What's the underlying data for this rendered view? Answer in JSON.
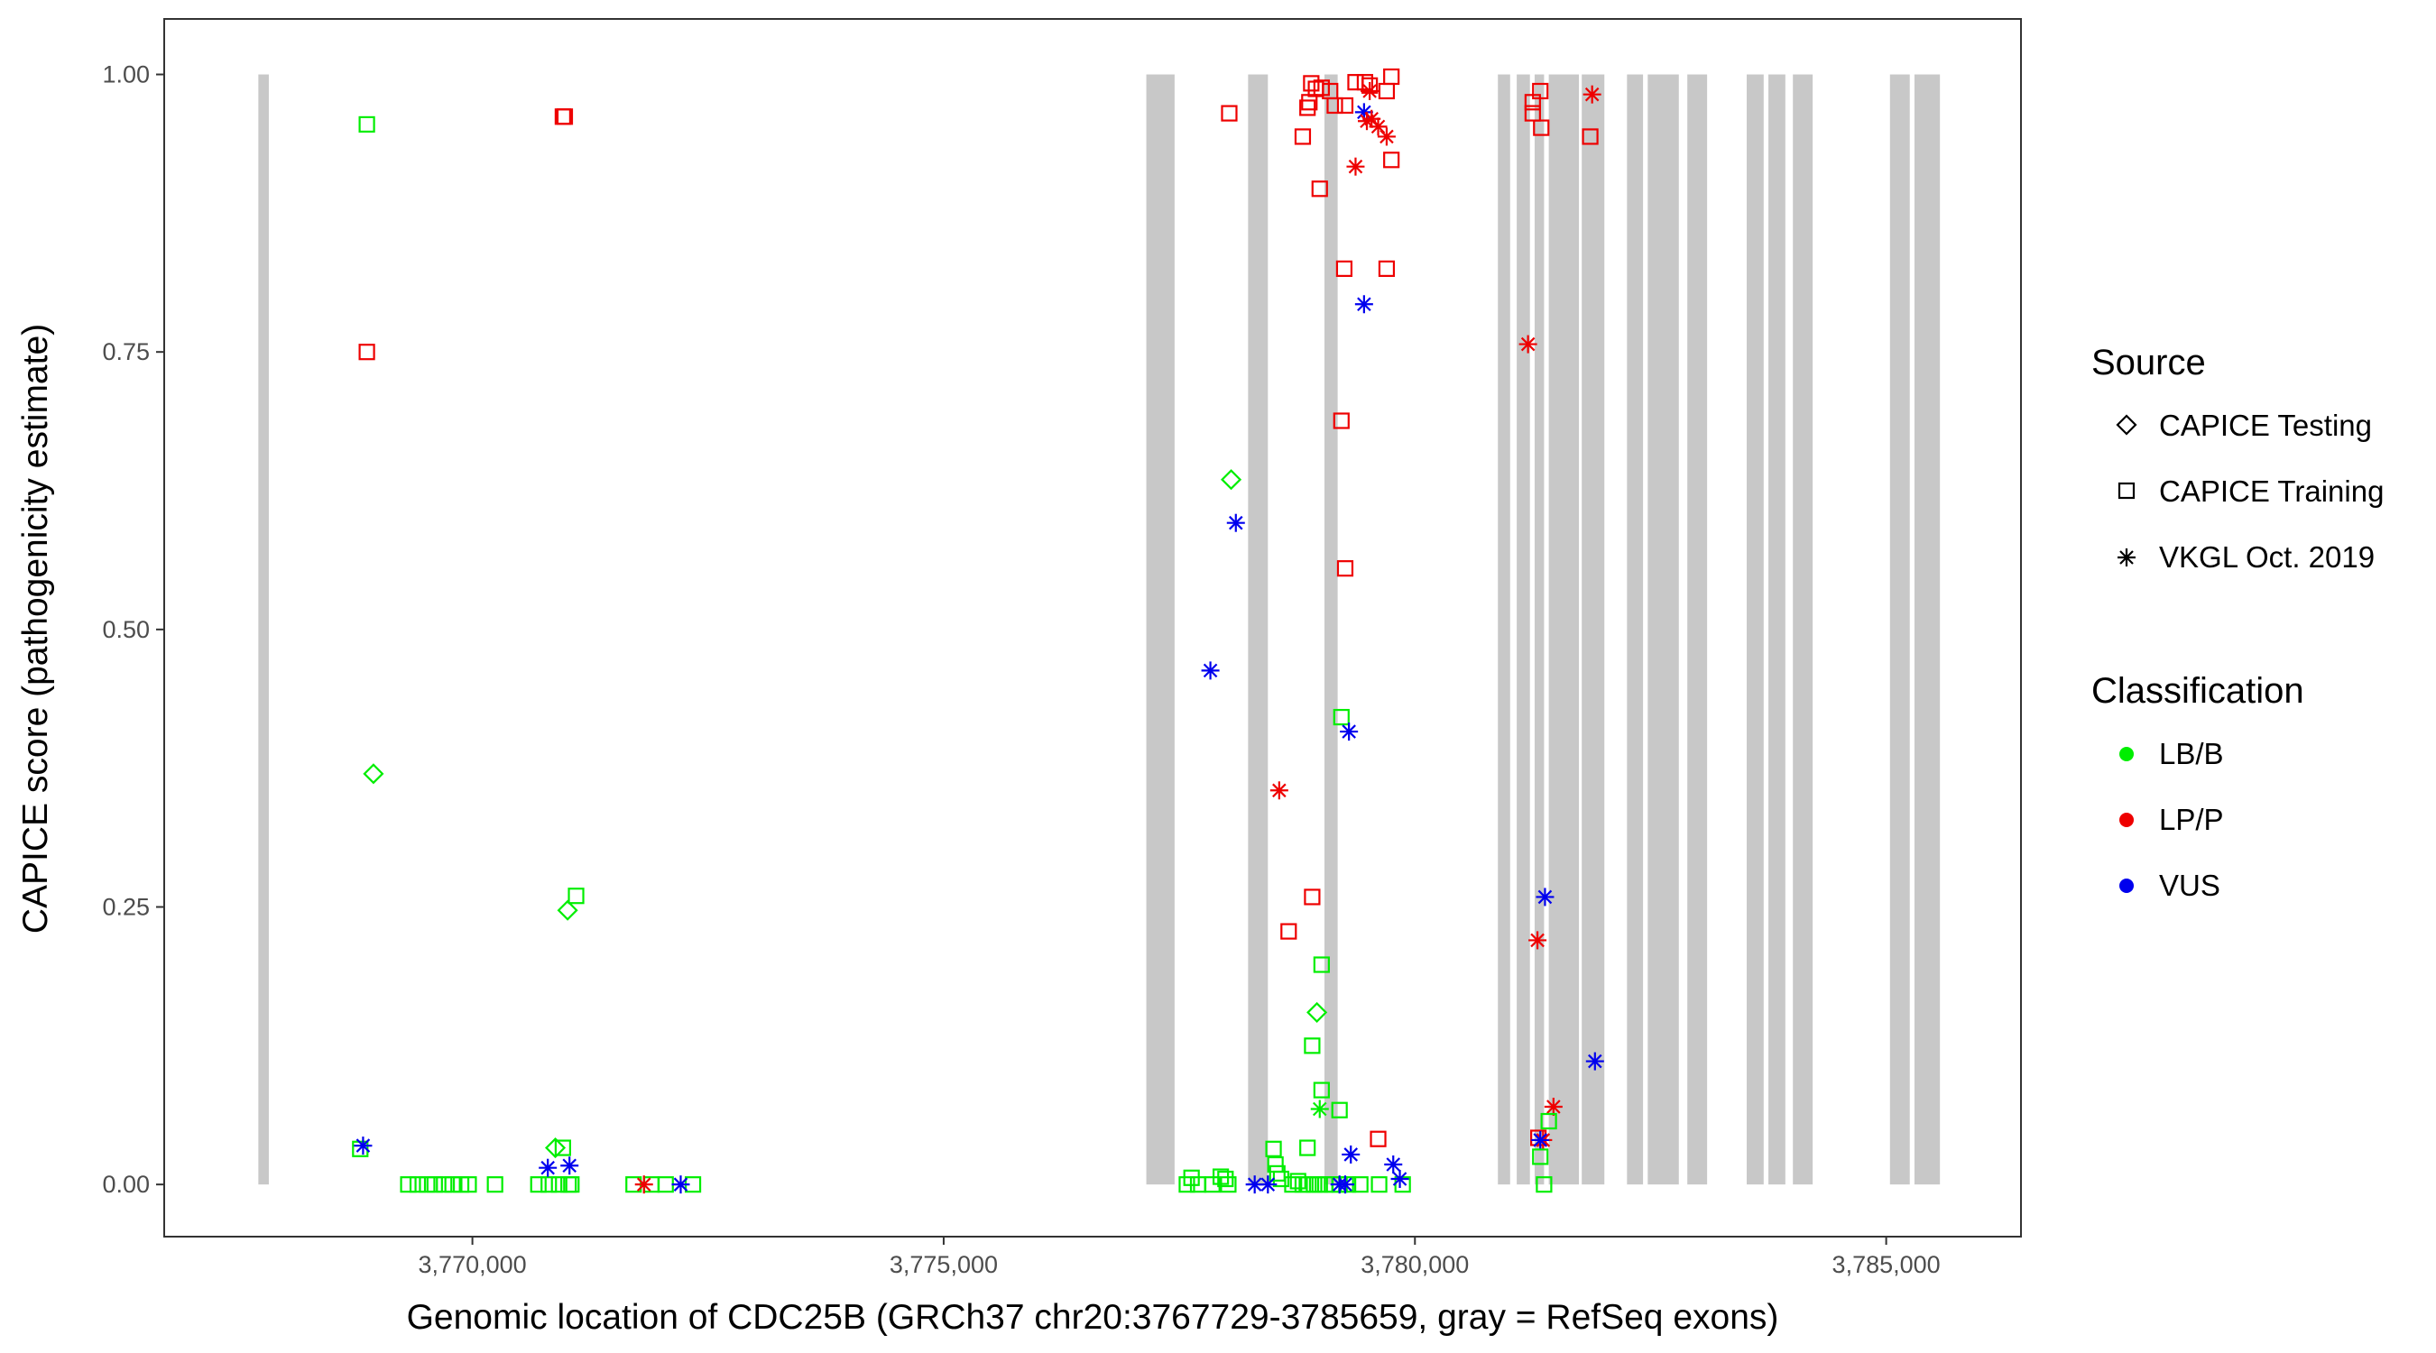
{
  "chart_data": {
    "type": "scatter",
    "xlabel": "Genomic location of CDC25B (GRCh37 chr20:3767729-3785659, gray = RefSeq exons)",
    "ylabel": "CAPICE score (pathogenicity estimate)",
    "xlim": [
      3766730,
      3786430
    ],
    "ylim": [
      -0.047,
      1.05
    ],
    "grid": false,
    "x_ticks": [
      3770000,
      3775000,
      3780000,
      3785000
    ],
    "x_tick_labels": [
      "3,770,000",
      "3,775,000",
      "3,780,000",
      "3,785,000"
    ],
    "y_ticks": [
      0,
      0.25,
      0.5,
      0.75,
      1.0
    ],
    "y_tick_labels": [
      "0.00",
      "0.25",
      "0.50",
      "0.75",
      "1.00"
    ],
    "exons": [
      [
        3767729,
        3767840
      ],
      [
        3777150,
        3777450
      ],
      [
        3778230,
        3778440
      ],
      [
        3779040,
        3779180
      ],
      [
        3780880,
        3781010
      ],
      [
        3781080,
        3781220
      ],
      [
        3781270,
        3781370
      ],
      [
        3781420,
        3781740
      ],
      [
        3781770,
        3782010
      ],
      [
        3782250,
        3782420
      ],
      [
        3782470,
        3782800
      ],
      [
        3782890,
        3783100
      ],
      [
        3783520,
        3783700
      ],
      [
        3783750,
        3783930
      ],
      [
        3784010,
        3784220
      ],
      [
        3785040,
        3785250
      ],
      [
        3785300,
        3785570
      ]
    ],
    "legend": {
      "source_title": "Source",
      "source_items": [
        {
          "label": "CAPICE Testing",
          "shape": "diamond"
        },
        {
          "label": "CAPICE Training",
          "shape": "square"
        },
        {
          "label": "VKGL Oct. 2019",
          "shape": "star"
        }
      ],
      "class_title": "Classification",
      "class_items": [
        {
          "label": "LB/B",
          "color": "#00ee00"
        },
        {
          "label": "LP/P",
          "color": "#ee0000"
        },
        {
          "label": "VUS",
          "color": "#0000ee"
        }
      ]
    },
    "colors": {
      "LB/B": "#00ee00",
      "LP/P": "#ee0000",
      "VUS": "#0000ee"
    },
    "points": [
      {
        "x": 3768880,
        "y": 0.955,
        "source": "square",
        "cls": "LB/B"
      },
      {
        "x": 3768880,
        "y": 0.75,
        "source": "square",
        "cls": "LP/P"
      },
      {
        "x": 3768950,
        "y": 0.37,
        "source": "diamond",
        "cls": "LB/B"
      },
      {
        "x": 3768810,
        "y": 0.032,
        "source": "square",
        "cls": "LB/B"
      },
      {
        "x": 3768840,
        "y": 0.035,
        "source": "star",
        "cls": "VUS"
      },
      {
        "x": 3769320,
        "y": 0.0,
        "source": "square",
        "cls": "LB/B"
      },
      {
        "x": 3769420,
        "y": 0.0,
        "source": "square",
        "cls": "LB/B"
      },
      {
        "x": 3769520,
        "y": 0.0,
        "source": "square",
        "cls": "LB/B"
      },
      {
        "x": 3769600,
        "y": 0.0,
        "source": "square",
        "cls": "LB/B"
      },
      {
        "x": 3769700,
        "y": 0.0,
        "source": "square",
        "cls": "LB/B"
      },
      {
        "x": 3769790,
        "y": 0.0,
        "source": "square",
        "cls": "LB/B"
      },
      {
        "x": 3769880,
        "y": 0.0,
        "source": "square",
        "cls": "LB/B"
      },
      {
        "x": 3769960,
        "y": 0.0,
        "source": "square",
        "cls": "LB/B"
      },
      {
        "x": 3770240,
        "y": 0.0,
        "source": "square",
        "cls": "LB/B"
      },
      {
        "x": 3770700,
        "y": 0.0,
        "source": "square",
        "cls": "LB/B"
      },
      {
        "x": 3770810,
        "y": 0.0,
        "source": "square",
        "cls": "LB/B"
      },
      {
        "x": 3770920,
        "y": 0.0,
        "source": "square",
        "cls": "LB/B"
      },
      {
        "x": 3771050,
        "y": 0.0,
        "source": "square",
        "cls": "LB/B"
      },
      {
        "x": 3771020,
        "y": 0.0,
        "source": "square",
        "cls": "LB/B"
      },
      {
        "x": 3770960,
        "y": 0.962,
        "source": "square",
        "cls": "LP/P"
      },
      {
        "x": 3770980,
        "y": 0.962,
        "source": "square",
        "cls": "LP/P"
      },
      {
        "x": 3771100,
        "y": 0.26,
        "source": "square",
        "cls": "LB/B"
      },
      {
        "x": 3771010,
        "y": 0.247,
        "source": "diamond",
        "cls": "LB/B"
      },
      {
        "x": 3770880,
        "y": 0.033,
        "source": "diamond",
        "cls": "LB/B"
      },
      {
        "x": 3770960,
        "y": 0.033,
        "source": "square",
        "cls": "LB/B"
      },
      {
        "x": 3770800,
        "y": 0.015,
        "source": "star",
        "cls": "VUS"
      },
      {
        "x": 3771030,
        "y": 0.017,
        "source": "star",
        "cls": "VUS"
      },
      {
        "x": 3771710,
        "y": 0.0,
        "source": "square",
        "cls": "LB/B"
      },
      {
        "x": 3771900,
        "y": 0.0,
        "source": "square",
        "cls": "LB/B"
      },
      {
        "x": 3772050,
        "y": 0.0,
        "source": "square",
        "cls": "LB/B"
      },
      {
        "x": 3772340,
        "y": 0.0,
        "source": "square",
        "cls": "LB/B"
      },
      {
        "x": 3771820,
        "y": 0.0,
        "source": "star",
        "cls": "LP/P"
      },
      {
        "x": 3772210,
        "y": 0.0,
        "source": "star",
        "cls": "VUS"
      },
      {
        "x": 3777580,
        "y": 0.0,
        "source": "square",
        "cls": "LB/B"
      },
      {
        "x": 3777700,
        "y": 0.0,
        "source": "square",
        "cls": "LB/B"
      },
      {
        "x": 3777630,
        "y": 0.006,
        "source": "square",
        "cls": "LB/B"
      },
      {
        "x": 3777850,
        "y": 0.0,
        "source": "square",
        "cls": "LB/B"
      },
      {
        "x": 3777940,
        "y": 0.007,
        "source": "square",
        "cls": "LB/B"
      },
      {
        "x": 3777990,
        "y": 0.005,
        "source": "square",
        "cls": "LB/B"
      },
      {
        "x": 3778020,
        "y": 0.0,
        "source": "square",
        "cls": "LB/B"
      },
      {
        "x": 3778500,
        "y": 0.032,
        "source": "square",
        "cls": "LB/B"
      },
      {
        "x": 3778520,
        "y": 0.018,
        "source": "square",
        "cls": "LB/B"
      },
      {
        "x": 3778540,
        "y": 0.01,
        "source": "square",
        "cls": "LB/B"
      },
      {
        "x": 3778580,
        "y": 0.005,
        "source": "square",
        "cls": "LB/B"
      },
      {
        "x": 3778700,
        "y": 0.0,
        "source": "square",
        "cls": "LB/B"
      },
      {
        "x": 3778760,
        "y": 0.003,
        "source": "square",
        "cls": "LB/B"
      },
      {
        "x": 3778810,
        "y": 0.0,
        "source": "square",
        "cls": "LB/B"
      },
      {
        "x": 3778870,
        "y": 0.0,
        "source": "square",
        "cls": "LB/B"
      },
      {
        "x": 3778930,
        "y": 0.0,
        "source": "square",
        "cls": "LB/B"
      },
      {
        "x": 3778990,
        "y": 0.0,
        "source": "square",
        "cls": "LB/B"
      },
      {
        "x": 3779050,
        "y": 0.0,
        "source": "square",
        "cls": "LB/B"
      },
      {
        "x": 3779120,
        "y": 0.0,
        "source": "square",
        "cls": "LB/B"
      },
      {
        "x": 3779200,
        "y": 0.0,
        "source": "square",
        "cls": "LB/B"
      },
      {
        "x": 3779290,
        "y": 0.0,
        "source": "square",
        "cls": "LB/B"
      },
      {
        "x": 3779420,
        "y": 0.0,
        "source": "square",
        "cls": "LB/B"
      },
      {
        "x": 3779620,
        "y": 0.0,
        "source": "square",
        "cls": "LB/B"
      },
      {
        "x": 3779870,
        "y": 0.0,
        "source": "square",
        "cls": "LB/B"
      },
      {
        "x": 3778860,
        "y": 0.033,
        "source": "square",
        "cls": "LB/B"
      },
      {
        "x": 3778910,
        "y": 0.125,
        "source": "square",
        "cls": "LB/B"
      },
      {
        "x": 3778960,
        "y": 0.155,
        "source": "diamond",
        "cls": "LB/B"
      },
      {
        "x": 3779010,
        "y": 0.198,
        "source": "square",
        "cls": "LB/B"
      },
      {
        "x": 3779010,
        "y": 0.085,
        "source": "square",
        "cls": "LB/B"
      },
      {
        "x": 3778990,
        "y": 0.068,
        "source": "star",
        "cls": "LB/B"
      },
      {
        "x": 3779200,
        "y": 0.067,
        "source": "square",
        "cls": "LB/B"
      },
      {
        "x": 3779220,
        "y": 0.421,
        "source": "square",
        "cls": "LB/B"
      },
      {
        "x": 3778050,
        "y": 0.635,
        "source": "diamond",
        "cls": "LB/B"
      },
      {
        "x": 3777830,
        "y": 0.463,
        "source": "star",
        "cls": "VUS"
      },
      {
        "x": 3778100,
        "y": 0.596,
        "source": "star",
        "cls": "VUS"
      },
      {
        "x": 3778300,
        "y": 0.0,
        "source": "star",
        "cls": "VUS"
      },
      {
        "x": 3778440,
        "y": 0.0,
        "source": "star",
        "cls": "VUS"
      },
      {
        "x": 3779200,
        "y": 0.0,
        "source": "star",
        "cls": "VUS"
      },
      {
        "x": 3779260,
        "y": 0.0,
        "source": "star",
        "cls": "VUS"
      },
      {
        "x": 3779320,
        "y": 0.027,
        "source": "star",
        "cls": "VUS"
      },
      {
        "x": 3779300,
        "y": 0.408,
        "source": "star",
        "cls": "VUS"
      },
      {
        "x": 3779460,
        "y": 0.793,
        "source": "star",
        "cls": "VUS"
      },
      {
        "x": 3779460,
        "y": 0.966,
        "source": "star",
        "cls": "VUS"
      },
      {
        "x": 3779770,
        "y": 0.018,
        "source": "star",
        "cls": "VUS"
      },
      {
        "x": 3779840,
        "y": 0.005,
        "source": "star",
        "cls": "VUS"
      },
      {
        "x": 3778030,
        "y": 0.965,
        "source": "square",
        "cls": "LP/P"
      },
      {
        "x": 3778660,
        "y": 0.228,
        "source": "square",
        "cls": "LP/P"
      },
      {
        "x": 3778560,
        "y": 0.355,
        "source": "star",
        "cls": "LP/P"
      },
      {
        "x": 3778810,
        "y": 0.944,
        "source": "square",
        "cls": "LP/P"
      },
      {
        "x": 3778860,
        "y": 0.97,
        "source": "square",
        "cls": "LP/P"
      },
      {
        "x": 3778880,
        "y": 0.975,
        "source": "square",
        "cls": "LP/P"
      },
      {
        "x": 3778900,
        "y": 0.992,
        "source": "square",
        "cls": "LP/P"
      },
      {
        "x": 3778950,
        "y": 0.987,
        "source": "square",
        "cls": "LP/P"
      },
      {
        "x": 3779010,
        "y": 0.988,
        "source": "square",
        "cls": "LP/P"
      },
      {
        "x": 3778990,
        "y": 0.897,
        "source": "square",
        "cls": "LP/P"
      },
      {
        "x": 3779100,
        "y": 0.985,
        "source": "square",
        "cls": "LP/P"
      },
      {
        "x": 3779150,
        "y": 0.972,
        "source": "square",
        "cls": "LP/P"
      },
      {
        "x": 3779260,
        "y": 0.972,
        "source": "square",
        "cls": "LP/P"
      },
      {
        "x": 3779370,
        "y": 0.993,
        "source": "square",
        "cls": "LP/P"
      },
      {
        "x": 3779470,
        "y": 0.993,
        "source": "square",
        "cls": "LP/P"
      },
      {
        "x": 3779520,
        "y": 0.99,
        "source": "square",
        "cls": "LP/P"
      },
      {
        "x": 3779700,
        "y": 0.985,
        "source": "square",
        "cls": "LP/P"
      },
      {
        "x": 3779750,
        "y": 0.998,
        "source": "square",
        "cls": "LP/P"
      },
      {
        "x": 3779750,
        "y": 0.923,
        "source": "square",
        "cls": "LP/P"
      },
      {
        "x": 3779250,
        "y": 0.825,
        "source": "square",
        "cls": "LP/P"
      },
      {
        "x": 3779700,
        "y": 0.825,
        "source": "square",
        "cls": "LP/P"
      },
      {
        "x": 3779220,
        "y": 0.688,
        "source": "square",
        "cls": "LP/P"
      },
      {
        "x": 3779260,
        "y": 0.555,
        "source": "square",
        "cls": "LP/P"
      },
      {
        "x": 3778910,
        "y": 0.259,
        "source": "square",
        "cls": "LP/P"
      },
      {
        "x": 3779610,
        "y": 0.041,
        "source": "square",
        "cls": "LP/P"
      },
      {
        "x": 3779370,
        "y": 0.917,
        "source": "star",
        "cls": "LP/P"
      },
      {
        "x": 3779490,
        "y": 0.958,
        "source": "star",
        "cls": "LP/P"
      },
      {
        "x": 3779540,
        "y": 0.96,
        "source": "star",
        "cls": "LP/P"
      },
      {
        "x": 3779610,
        "y": 0.953,
        "source": "star",
        "cls": "LP/P"
      },
      {
        "x": 3779700,
        "y": 0.944,
        "source": "star",
        "cls": "LP/P"
      },
      {
        "x": 3779520,
        "y": 0.985,
        "source": "star",
        "cls": "LP/P"
      },
      {
        "x": 3781250,
        "y": 0.975,
        "source": "square",
        "cls": "LP/P"
      },
      {
        "x": 3781250,
        "y": 0.965,
        "source": "square",
        "cls": "LP/P"
      },
      {
        "x": 3781330,
        "y": 0.985,
        "source": "square",
        "cls": "LP/P"
      },
      {
        "x": 3781340,
        "y": 0.952,
        "source": "square",
        "cls": "LP/P"
      },
      {
        "x": 3781860,
        "y": 0.944,
        "source": "square",
        "cls": "LP/P"
      },
      {
        "x": 3781880,
        "y": 0.982,
        "source": "star",
        "cls": "LP/P"
      },
      {
        "x": 3781200,
        "y": 0.757,
        "source": "star",
        "cls": "LP/P"
      },
      {
        "x": 3781300,
        "y": 0.22,
        "source": "star",
        "cls": "LP/P"
      },
      {
        "x": 3781470,
        "y": 0.07,
        "source": "star",
        "cls": "LP/P"
      },
      {
        "x": 3781360,
        "y": 0.04,
        "source": "star",
        "cls": "LP/P"
      },
      {
        "x": 3781310,
        "y": 0.042,
        "source": "square",
        "cls": "LP/P"
      },
      {
        "x": 3781380,
        "y": 0.259,
        "source": "star",
        "cls": "VUS"
      },
      {
        "x": 3781910,
        "y": 0.111,
        "source": "star",
        "cls": "VUS"
      },
      {
        "x": 3781330,
        "y": 0.04,
        "source": "star",
        "cls": "VUS"
      },
      {
        "x": 3781420,
        "y": 0.057,
        "source": "square",
        "cls": "LB/B"
      },
      {
        "x": 3781330,
        "y": 0.025,
        "source": "square",
        "cls": "LB/B"
      },
      {
        "x": 3781370,
        "y": 0.0,
        "source": "square",
        "cls": "LB/B"
      }
    ]
  }
}
